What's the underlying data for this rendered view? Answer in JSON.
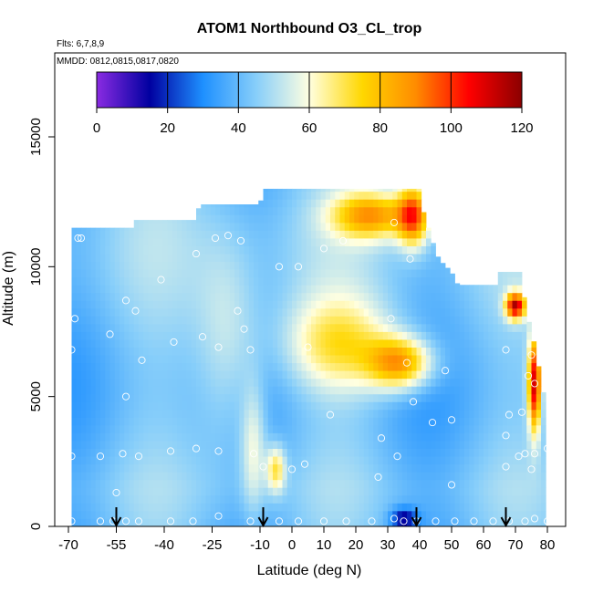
{
  "chart_data": {
    "type": "heatmap",
    "title": "ATOM1 Northbound O3_CL_trop",
    "flights_label": "Flts: 6,7,8,9",
    "dates_label": "MMDD: 0812,0815,0817,0820",
    "xlabel": "Latitude (deg N)",
    "ylabel": "Altitude (m)",
    "xlim": [
      -70,
      80
    ],
    "ylim": [
      0,
      17500
    ],
    "x_ticks": [
      -70,
      -55,
      -40,
      -25,
      -10,
      0,
      10,
      20,
      30,
      40,
      50,
      60,
      70,
      80
    ],
    "y_ticks": [
      0,
      5000,
      10000,
      15000
    ],
    "colorbar": {
      "min": 0,
      "max": 120,
      "ticks": [
        0,
        20,
        40,
        60,
        80,
        100,
        120
      ],
      "colors": [
        "#8a2be2",
        "#0000a0",
        "#1e90ff",
        "#87cefa",
        "#ffffe0",
        "#ffd700",
        "#ff8c00",
        "#ff0000",
        "#8b0000"
      ],
      "placement": "top-inside"
    },
    "coverage_top": [
      {
        "lat": -69,
        "alt": 11500
      },
      {
        "lat": -50,
        "alt": 11500
      },
      {
        "lat": -49,
        "alt": 11800
      },
      {
        "lat": -30,
        "alt": 11800
      },
      {
        "lat": -29,
        "alt": 12400
      },
      {
        "lat": -10,
        "alt": 12400
      },
      {
        "lat": -9,
        "alt": 13000
      },
      {
        "lat": 40,
        "alt": 13000
      },
      {
        "lat": 41,
        "alt": 12200
      },
      {
        "lat": 44,
        "alt": 11000
      },
      {
        "lat": 46,
        "alt": 10300
      },
      {
        "lat": 50,
        "alt": 9800
      },
      {
        "lat": 52,
        "alt": 9300
      },
      {
        "lat": 64,
        "alt": 9300
      },
      {
        "lat": 65,
        "alt": 9800
      },
      {
        "lat": 72,
        "alt": 9800
      },
      {
        "lat": 73,
        "alt": 8500
      },
      {
        "lat": 76,
        "alt": 7000
      },
      {
        "lat": 79,
        "alt": 5000
      },
      {
        "lat": 80,
        "alt": 3000
      }
    ],
    "field_features": [
      {
        "lat": -20,
        "alt": 7000,
        "value": 58,
        "spread_lat": 10,
        "spread_alt": 4000
      },
      {
        "lat": -12,
        "alt": 3000,
        "value": 62,
        "spread_lat": 4,
        "spread_alt": 2500
      },
      {
        "lat": -5,
        "alt": 2200,
        "value": 72,
        "spread_lat": 3,
        "spread_alt": 900
      },
      {
        "lat": 25,
        "alt": 12000,
        "value": 85,
        "spread_lat": 12,
        "spread_alt": 900
      },
      {
        "lat": 38,
        "alt": 12000,
        "value": 95,
        "spread_lat": 5,
        "spread_alt": 1200
      },
      {
        "lat": 34,
        "alt": 6300,
        "value": 88,
        "spread_lat": 10,
        "spread_alt": 1000
      },
      {
        "lat": 15,
        "alt": 7000,
        "value": 70,
        "spread_lat": 18,
        "spread_alt": 1800
      },
      {
        "lat": 76,
        "alt": 5500,
        "value": 110,
        "spread_lat": 2,
        "spread_alt": 1800
      },
      {
        "lat": 70,
        "alt": 8500,
        "value": 110,
        "spread_lat": 3,
        "spread_alt": 500
      },
      {
        "lat": 35,
        "alt": 300,
        "value": 15,
        "spread_lat": 4,
        "spread_alt": 400
      }
    ],
    "sample_points": [
      {
        "lat": -67,
        "alt": 11100
      },
      {
        "lat": -66,
        "alt": 11100
      },
      {
        "lat": -57,
        "alt": 7400
      },
      {
        "lat": -68,
        "alt": 8000
      },
      {
        "lat": -69,
        "alt": 6800
      },
      {
        "lat": -52,
        "alt": 8700
      },
      {
        "lat": -49,
        "alt": 8300
      },
      {
        "lat": -41,
        "alt": 9500
      },
      {
        "lat": -37,
        "alt": 7100
      },
      {
        "lat": -47,
        "alt": 6400
      },
      {
        "lat": -30,
        "alt": 10500
      },
      {
        "lat": -24,
        "alt": 11100
      },
      {
        "lat": -20,
        "alt": 11200
      },
      {
        "lat": -16,
        "alt": 11000
      },
      {
        "lat": -28,
        "alt": 7300
      },
      {
        "lat": -23,
        "alt": 6900
      },
      {
        "lat": -17,
        "alt": 8300
      },
      {
        "lat": -15,
        "alt": 7600
      },
      {
        "lat": -52,
        "alt": 5000
      },
      {
        "lat": -13,
        "alt": 6800
      },
      {
        "lat": -4,
        "alt": 10000
      },
      {
        "lat": 2,
        "alt": 10000
      },
      {
        "lat": 10,
        "alt": 10700
      },
      {
        "lat": 16,
        "alt": 11000
      },
      {
        "lat": 32,
        "alt": 11700
      },
      {
        "lat": 42,
        "alt": 12800
      },
      {
        "lat": 37,
        "alt": 10300
      },
      {
        "lat": 5,
        "alt": 6900
      },
      {
        "lat": 31,
        "alt": 8000
      },
      {
        "lat": 36,
        "alt": 6300
      },
      {
        "lat": 38,
        "alt": 4800
      },
      {
        "lat": 48,
        "alt": 6000
      },
      {
        "lat": 67,
        "alt": 6800
      },
      {
        "lat": 75,
        "alt": 6600
      },
      {
        "lat": 76,
        "alt": 5500
      },
      {
        "lat": 74,
        "alt": 5800
      },
      {
        "lat": 12,
        "alt": 4300
      },
      {
        "lat": 28,
        "alt": 3400
      },
      {
        "lat": 44,
        "alt": 4000
      },
      {
        "lat": 50,
        "alt": 4100
      },
      {
        "lat": 68,
        "alt": 4300
      },
      {
        "lat": 72,
        "alt": 4400
      },
      {
        "lat": 67,
        "alt": 3500
      },
      {
        "lat": 71,
        "alt": 2700
      },
      {
        "lat": 73,
        "alt": 2800
      },
      {
        "lat": 76,
        "alt": 2800
      },
      {
        "lat": 80,
        "alt": 3000
      },
      {
        "lat": 75,
        "alt": 2200
      },
      {
        "lat": -69,
        "alt": 2700
      },
      {
        "lat": -60,
        "alt": 2700
      },
      {
        "lat": -53,
        "alt": 2800
      },
      {
        "lat": -48,
        "alt": 2700
      },
      {
        "lat": -38,
        "alt": 2900
      },
      {
        "lat": -30,
        "alt": 3000
      },
      {
        "lat": -23,
        "alt": 2900
      },
      {
        "lat": -12,
        "alt": 2800
      },
      {
        "lat": -9,
        "alt": 2300
      },
      {
        "lat": 0,
        "alt": 2200
      },
      {
        "lat": 4,
        "alt": 2400
      },
      {
        "lat": 33,
        "alt": 2700
      },
      {
        "lat": 50,
        "alt": 1600
      },
      {
        "lat": 27,
        "alt": 1900
      },
      {
        "lat": 67,
        "alt": 2300
      },
      {
        "lat": -55,
        "alt": 1300
      },
      {
        "lat": -69,
        "alt": 200
      },
      {
        "lat": -60,
        "alt": 200
      },
      {
        "lat": -56,
        "alt": 200
      },
      {
        "lat": -52,
        "alt": 200
      },
      {
        "lat": -48,
        "alt": 200
      },
      {
        "lat": -38,
        "alt": 200
      },
      {
        "lat": -31,
        "alt": 200
      },
      {
        "lat": -23,
        "alt": 400
      },
      {
        "lat": -13,
        "alt": 200
      },
      {
        "lat": -4,
        "alt": 200
      },
      {
        "lat": 2,
        "alt": 200
      },
      {
        "lat": 10,
        "alt": 200
      },
      {
        "lat": 17,
        "alt": 200
      },
      {
        "lat": 25,
        "alt": 200
      },
      {
        "lat": 32,
        "alt": 300
      },
      {
        "lat": 35,
        "alt": 200
      },
      {
        "lat": 39,
        "alt": 200
      },
      {
        "lat": 45,
        "alt": 200
      },
      {
        "lat": 57,
        "alt": 200
      },
      {
        "lat": 68,
        "alt": 200
      },
      {
        "lat": 73,
        "alt": 200
      },
      {
        "lat": 76,
        "alt": 300
      },
      {
        "lat": 80,
        "alt": 200
      },
      {
        "lat": 63,
        "alt": 200
      },
      {
        "lat": 51,
        "alt": 200
      }
    ],
    "arrows_lat": [
      -55,
      -9,
      39,
      67
    ],
    "grid": false,
    "legend": "none"
  }
}
